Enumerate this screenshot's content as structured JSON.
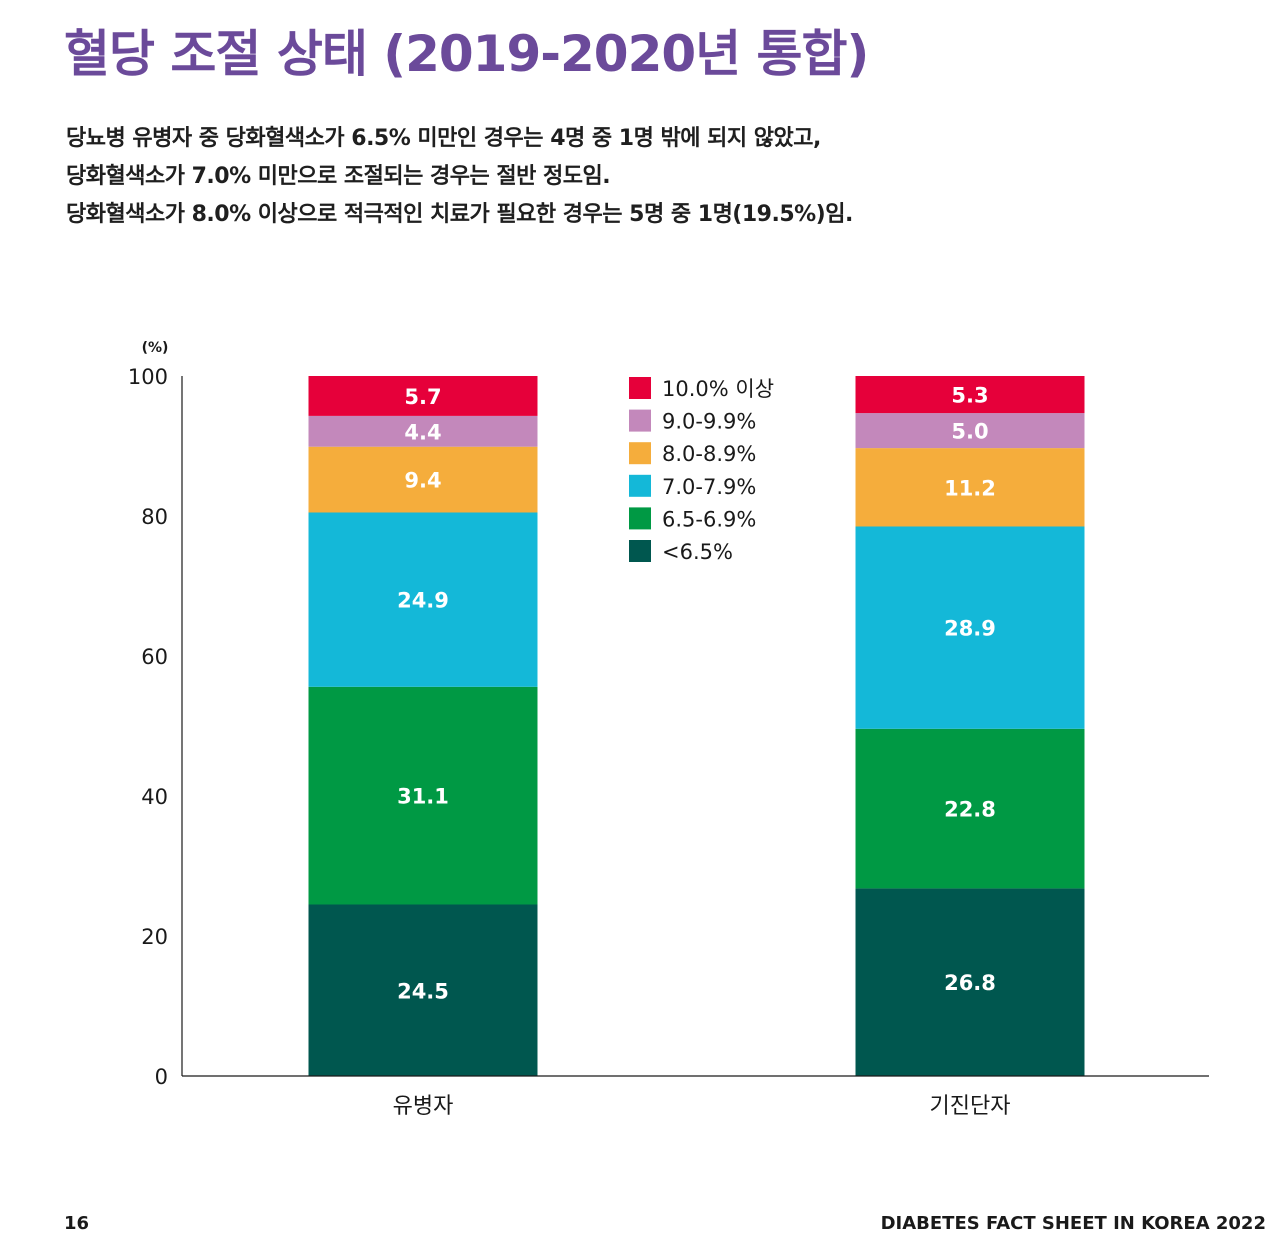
{
  "page": {
    "title": "혈당 조절 상태 (2019-2020년 통합)",
    "summary_lines": [
      "당뇨병 유병자 중 당화혈색소가 6.5% 미만인 경우는 4명 중 1명 밖에 되지 않았고,",
      "당화혈색소가 7.0% 미만으로 조절되는 경우는 절반 정도임.",
      "당화혈색소가 8.0% 이상으로 적극적인 치료가 필요한 경우는 5명 중 1명(19.5%)임."
    ],
    "page_number": "16",
    "publication": "DIABETES FACT SHEET IN KOREA 2022"
  },
  "chart_data": {
    "type": "bar",
    "stacked": true,
    "title": "",
    "ylabel": "(%)",
    "xlabel": "",
    "ylim": [
      0,
      100
    ],
    "yticks": [
      0,
      20,
      40,
      60,
      80,
      100
    ],
    "legend_position": "top-center",
    "categories": [
      "유병자",
      "기진단자"
    ],
    "series": [
      {
        "name": "<6.5%",
        "color": "#00574f",
        "values": [
          24.5,
          26.8
        ]
      },
      {
        "name": "6.5-6.9%",
        "color": "#009944",
        "values": [
          31.1,
          22.8
        ]
      },
      {
        "name": "7.0-7.9%",
        "color": "#14b8d8",
        "values": [
          24.9,
          28.9
        ]
      },
      {
        "name": "8.0-8.9%",
        "color": "#f5ad3c",
        "values": [
          9.4,
          11.2
        ]
      },
      {
        "name": "9.0-9.9%",
        "color": "#c388bb",
        "values": [
          4.4,
          5.0
        ]
      },
      {
        "name": "10.0% 이상",
        "color": "#e6003a",
        "values": [
          5.7,
          5.3
        ]
      }
    ],
    "legend_order": [
      "10.0% 이상",
      "9.0-9.9%",
      "8.0-8.9%",
      "7.0-7.9%",
      "6.5-6.9%",
      "<6.5%"
    ]
  }
}
